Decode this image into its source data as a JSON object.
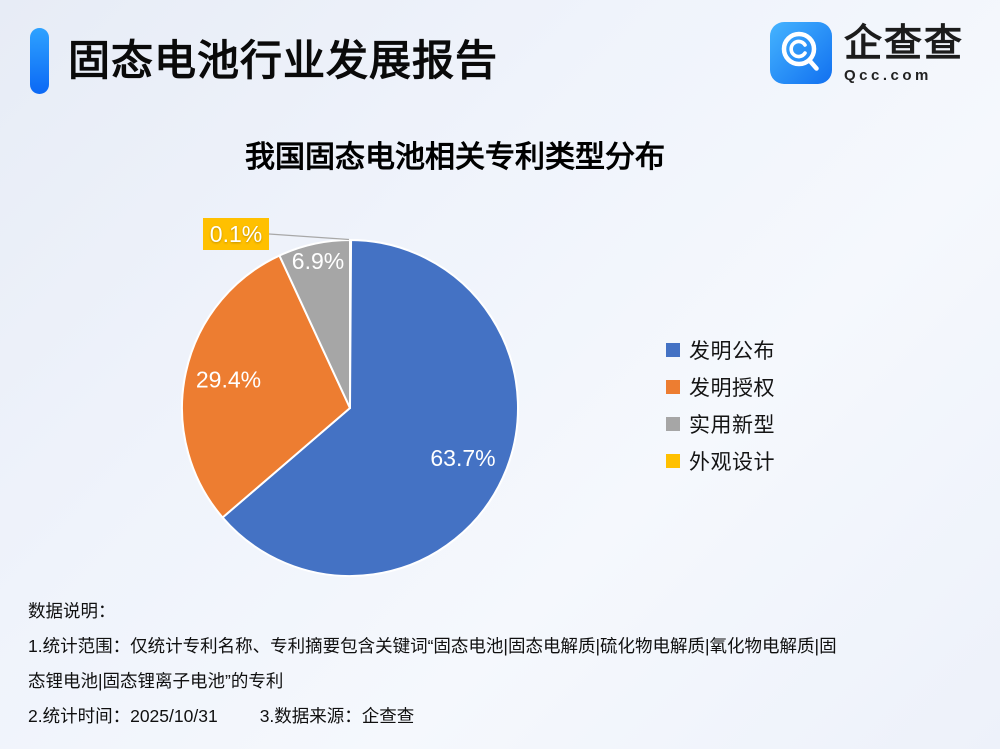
{
  "header": {
    "title": "固态电池行业发展报告",
    "logo_name": "企查查",
    "logo_domain": "Qcc.com"
  },
  "chart_data": {
    "type": "pie",
    "title": "我国固态电池相关专利类型分布",
    "unit": "percent",
    "start_angle": "top",
    "direction": "clockwise",
    "legend_position": "right",
    "slices": [
      {
        "label": "发明公布",
        "value": 63.7,
        "display": "63.7%",
        "color": "#4472C4"
      },
      {
        "label": "发明授权",
        "value": 29.4,
        "display": "29.4%",
        "color": "#ED7D31"
      },
      {
        "label": "实用新型",
        "value": 6.9,
        "display": "6.9%",
        "color": "#A6A6A6"
      },
      {
        "label": "外观设计",
        "value": 0.1,
        "display": "0.1%",
        "color": "#FFC000"
      }
    ],
    "external_label": {
      "slice": "外观设计",
      "display": "0.1%"
    }
  },
  "notes": {
    "heading": "数据说明：",
    "lines": [
      "1.统计范围：仅统计专利名称、专利摘要包含关键词“固态电池|固态电解质|硫化物电解质|氧化物电解质|固",
      "态锂电池|固态锂离子电池”的专利"
    ],
    "stat_time": "2.统计时间：2025/10/31",
    "source": "3.数据来源：企查查"
  }
}
